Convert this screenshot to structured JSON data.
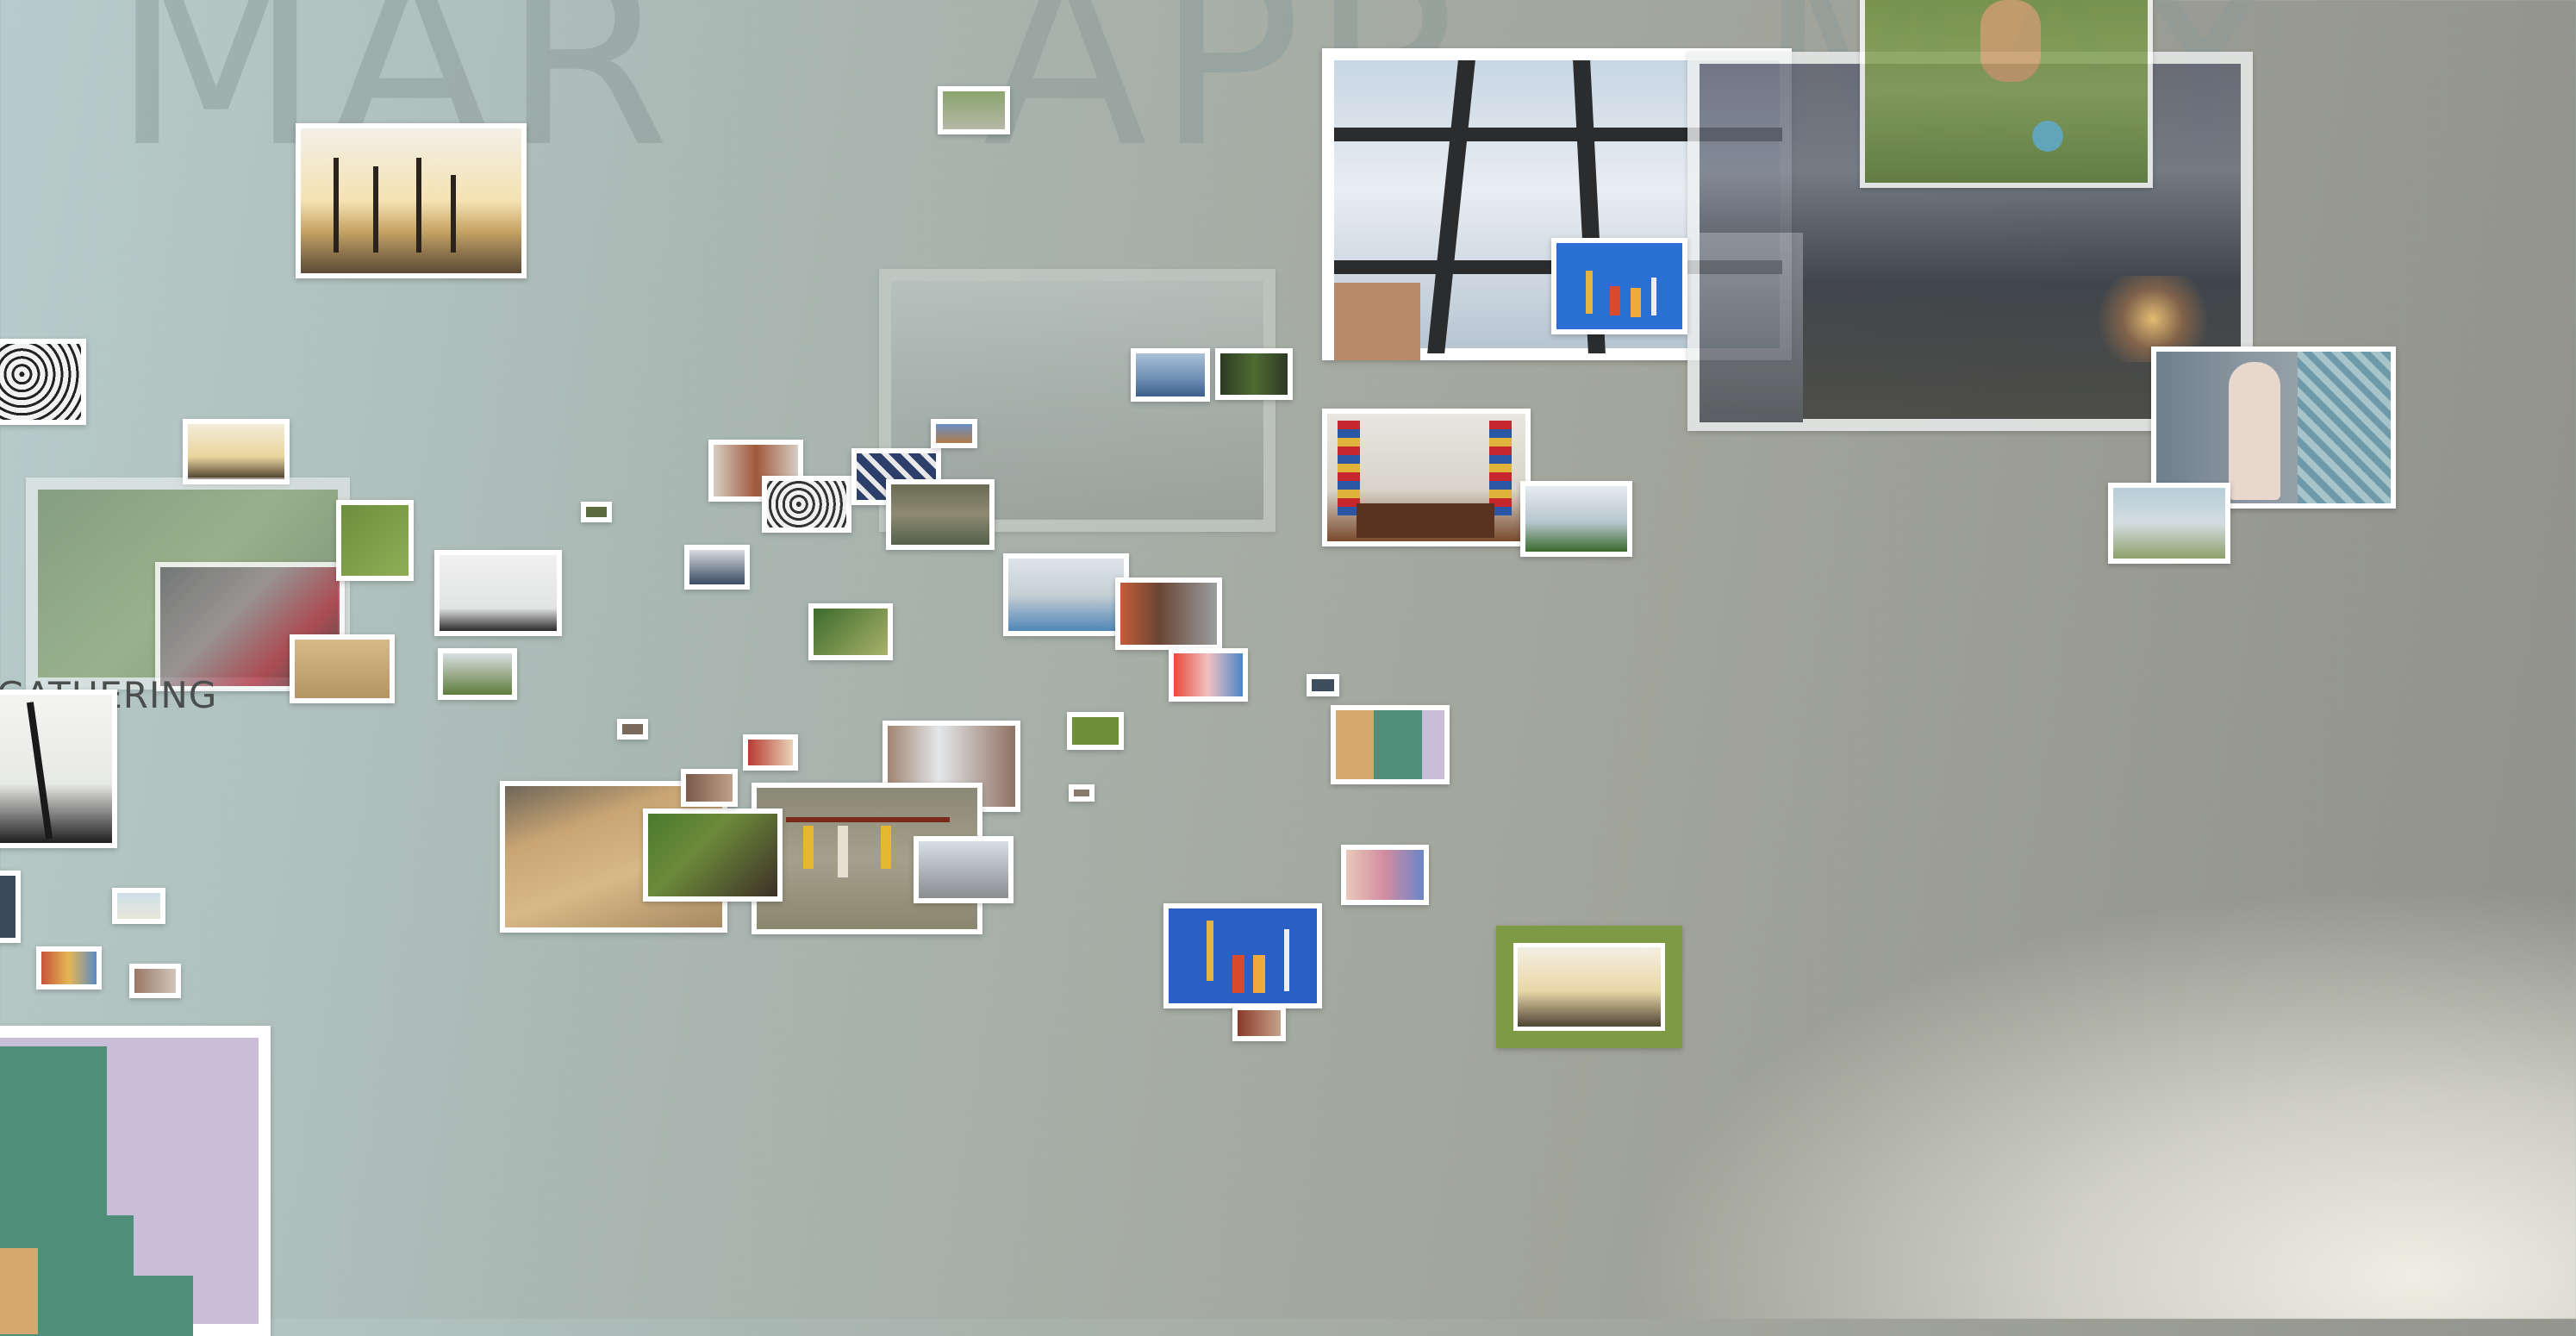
{
  "timeline": {
    "months": [
      "MAR",
      "APR",
      "MAY"
    ],
    "cluster_label": "GATHERING"
  },
  "photos": [
    "palm-trees-sunset",
    "sidewalk-thumb",
    "window-frame-sky",
    "city-night-overlay",
    "dog-on-grass",
    "lace-pattern",
    "palms-small",
    "hedge-faded",
    "bikers-faded",
    "pier-bicycle-faded",
    "ocean-thumb",
    "bottles-thumb",
    "dining-room",
    "lake-trees",
    "woman-tapestry",
    "bike-by-water",
    "doorway-thumb",
    "lace-thumb",
    "blue-tools-thumb",
    "tools-wall-thumb",
    "birds-palm",
    "street-walkers",
    "trees-park",
    "group-green",
    "plaza-people",
    "man-headphones",
    "toys-thumb",
    "bag-thumb",
    "colorful-wall",
    "desert-road",
    "group-selfie",
    "tools-on-wall",
    "city-street",
    "window-small",
    "blue-wall-tools",
    "palms-hedge-frame",
    "wall-art-thumb",
    "colorful-wall-large",
    "palm-silhouette"
  ]
}
